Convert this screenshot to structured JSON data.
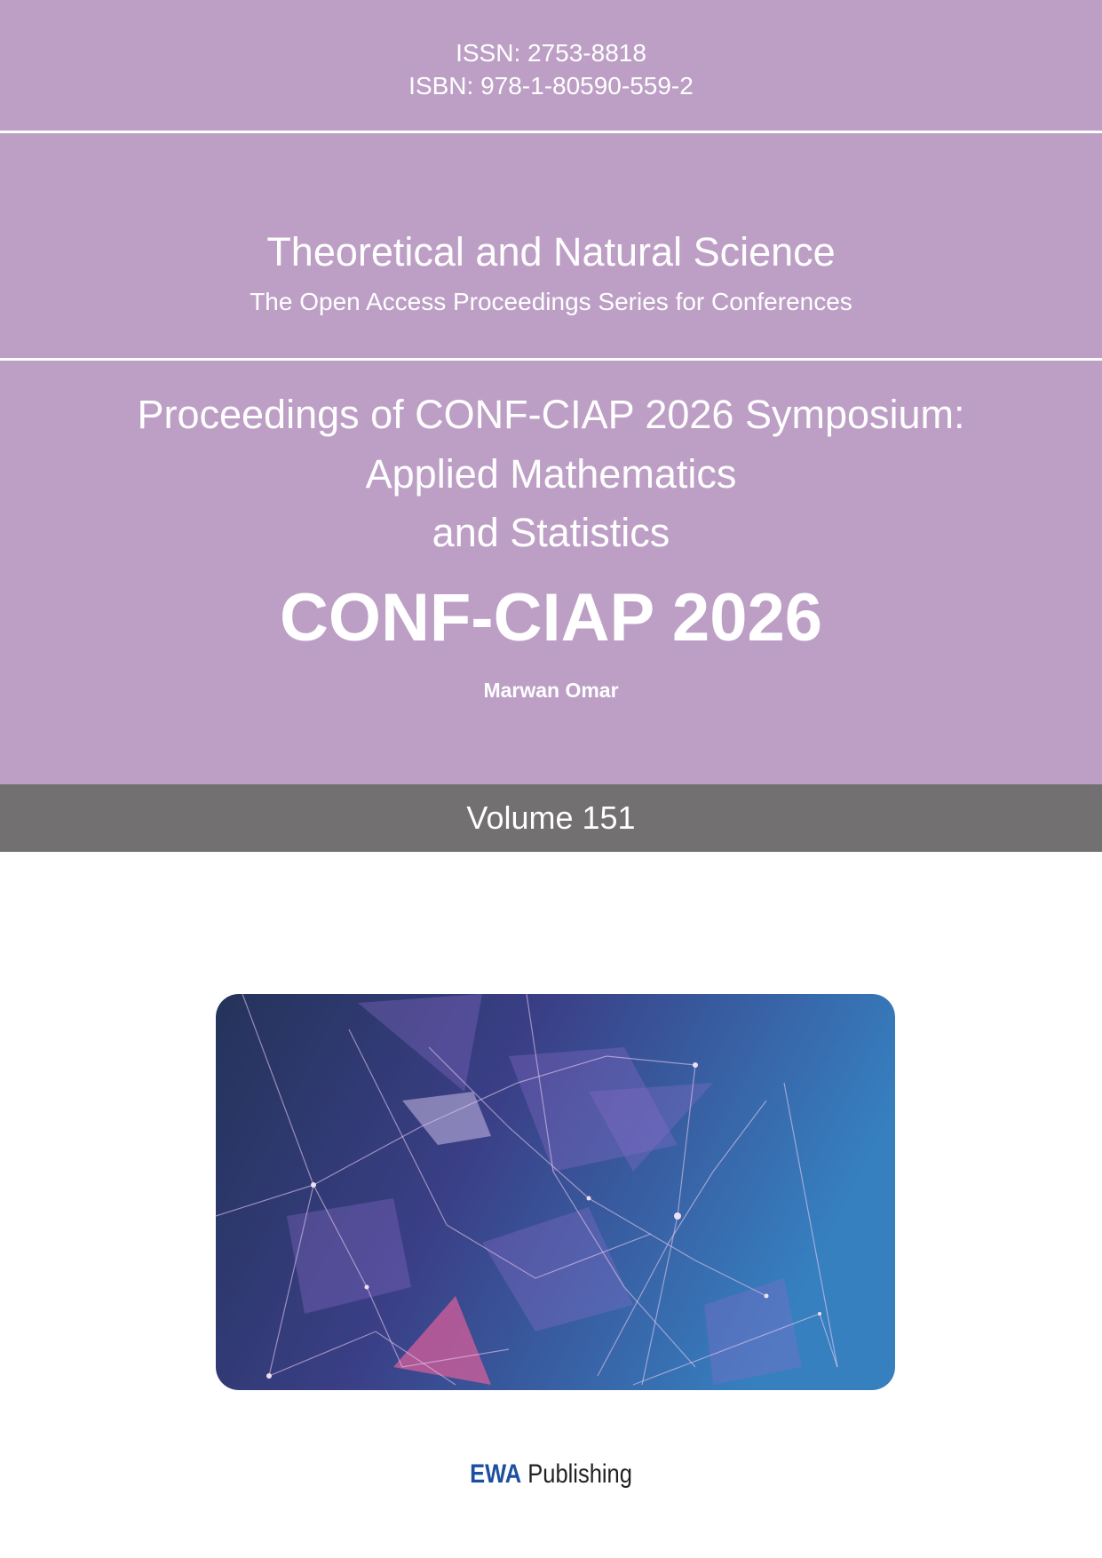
{
  "header": {
    "issn": "ISSN: 2753-8818",
    "isbn": "ISBN: 978-1-80590-559-2"
  },
  "series": {
    "title": "Theoretical and Natural Science",
    "subtitle": "The Open Access Proceedings Series for Conferences"
  },
  "proceedings": {
    "line1": "Proceedings of CONF-CIAP 2026 Symposium:",
    "line2": "Applied Mathematics",
    "line3": "and Statistics"
  },
  "conference": {
    "name": "CONF-CIAP 2026",
    "editor": "Marwan Omar"
  },
  "volume": "Volume 151",
  "publisher": {
    "brand": "EWA",
    "name": "Publishing"
  },
  "colors": {
    "cover": "#bd9fc6",
    "band": "#727071",
    "brand": "#1c4fa0"
  }
}
